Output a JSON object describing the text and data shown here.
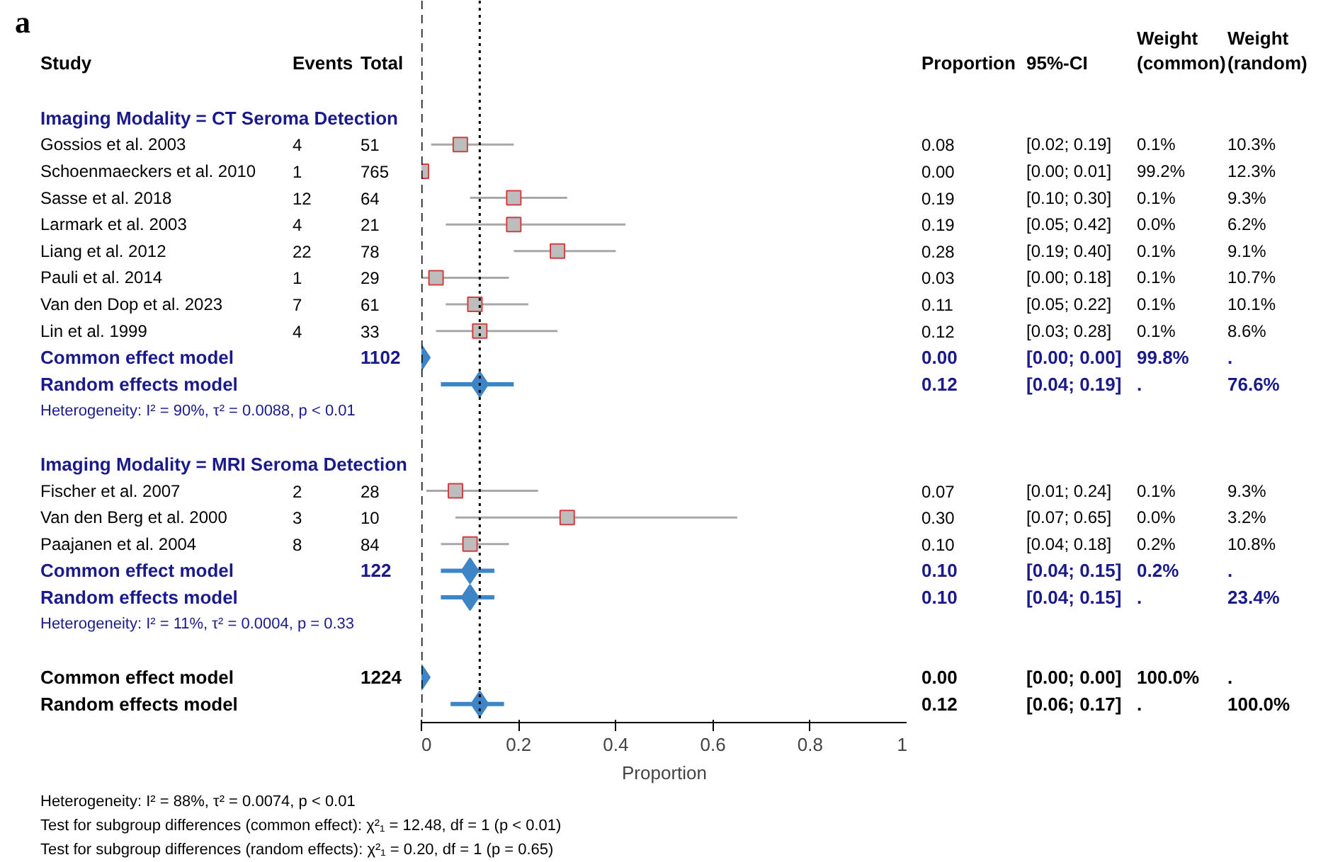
{
  "chart_data": {
    "type": "scatter",
    "orientation": "horizontal",
    "title": "a",
    "ylabel": "Study",
    "xlabel": "Proportion",
    "categories": [
      "Imaging Modality = CT Seroma Detection",
      "Gossios et al. 2003",
      "Schoenmaeckers et al. 2010",
      "Sasse et al. 2018",
      "Larmark et al. 2003",
      "Liang et al. 2012",
      "Pauli et al. 2014",
      "Van den Dop et al. 2023",
      "Lin et al. 1999",
      "Common effect model",
      "Random effects model",
      "Heterogeneity: I² = 90%, τ² = 0.0088, p < 0.01",
      null,
      "Imaging Modality = MRI Seroma Detection",
      "Fischer et al. 2007",
      "Van den Berg et al. 2000",
      "Paajanen et al. 2004",
      "Common effect model",
      "Random effects model",
      "Heterogeneity: I² = 11%, τ² = 0.0004, p = 0.33",
      null,
      "Common effect model",
      "Random effects model"
    ],
    "xlim": [
      0,
      1
    ],
    "xticks": [
      0,
      0.2,
      0.4,
      0.6,
      0.8,
      1
    ],
    "series": [
      {
        "type": "scatter",
        "marker": "square",
        "color": "#bdbdbd",
        "values": [
          null,
          0.08,
          0.0,
          0.19,
          0.19,
          0.28,
          0.03,
          0.11,
          0.12,
          null,
          null,
          null,
          null,
          null,
          0.07,
          0.3,
          0.1,
          null,
          null,
          null,
          null,
          null,
          null
        ],
        "errors": [
          null,
          [
            0.02,
            0.19
          ],
          [
            0.0,
            0.01
          ],
          [
            0.1,
            0.3
          ],
          [
            0.05,
            0.42
          ],
          [
            0.19,
            0.4
          ],
          [
            0.0,
            0.18
          ],
          [
            0.05,
            0.22
          ],
          [
            0.03,
            0.28
          ],
          null,
          null,
          null,
          null,
          null,
          [
            0.01,
            0.24
          ],
          [
            0.07,
            0.65
          ],
          [
            0.04,
            0.18
          ],
          null,
          null,
          null,
          null,
          null,
          null
        ]
      },
      {
        "type": "scatter",
        "marker": "diamond",
        "color": "#3d85c6",
        "values": [
          null,
          null,
          null,
          null,
          null,
          null,
          null,
          null,
          null,
          0.0,
          0.12,
          null,
          null,
          null,
          null,
          null,
          null,
          0.1,
          0.1,
          null,
          null,
          0.0,
          0.12
        ],
        "errors": [
          null,
          null,
          null,
          null,
          null,
          null,
          null,
          null,
          null,
          [
            0.0,
            0.0
          ],
          [
            0.04,
            0.19
          ],
          null,
          null,
          null,
          null,
          null,
          null,
          [
            0.04,
            0.15
          ],
          [
            0.04,
            0.15
          ],
          null,
          null,
          [
            0.0,
            0.0
          ],
          [
            0.06,
            0.17
          ]
        ]
      },
      {
        "type": "other",
        "name": "Events",
        "values": [
          null,
          null,
          null,
          null,
          null,
          null,
          null,
          null,
          null,
          null,
          null,
          null,
          null,
          null,
          null,
          null,
          null,
          null,
          null,
          null,
          null,
          null,
          null
        ],
        "value_labels": [
          null,
          "4",
          "1",
          "12",
          "4",
          "22",
          "1",
          "7",
          "4",
          null,
          null,
          null,
          null,
          null,
          "2",
          "3",
          "8",
          null,
          null,
          null,
          null,
          null,
          null
        ]
      },
      {
        "type": "other",
        "name": "Total",
        "values": [
          null,
          null,
          null,
          null,
          null,
          null,
          null,
          null,
          null,
          null,
          null,
          null,
          null,
          null,
          null,
          null,
          null,
          null,
          null,
          null,
          null,
          null,
          null
        ],
        "value_labels": [
          null,
          "51",
          "765",
          "64",
          "21",
          "78",
          "29",
          "61",
          "33",
          "1102",
          null,
          null,
          null,
          null,
          "28",
          "10",
          "84",
          "122",
          null,
          null,
          null,
          "1224",
          null
        ]
      },
      {
        "type": "other",
        "name": "Proportion",
        "values": [
          null,
          null,
          null,
          null,
          null,
          null,
          null,
          null,
          null,
          null,
          null,
          null,
          null,
          null,
          null,
          null,
          null,
          null,
          null,
          null,
          null,
          null,
          null
        ],
        "value_labels": [
          null,
          "0.08",
          "0.00",
          "0.19",
          "0.19",
          "0.28",
          "0.03",
          "0.11",
          "0.12",
          "0.00",
          "0.12",
          null,
          null,
          null,
          "0.07",
          "0.30",
          "0.10",
          "0.10",
          "0.10",
          null,
          null,
          "0.00",
          "0.12"
        ]
      },
      {
        "type": "other",
        "name": "95%-CI",
        "values": [
          null,
          null,
          null,
          null,
          null,
          null,
          null,
          null,
          null,
          null,
          null,
          null,
          null,
          null,
          null,
          null,
          null,
          null,
          null,
          null,
          null,
          null,
          null
        ],
        "value_labels": [
          null,
          "[0.02; 0.19]",
          "[0.00; 0.01]",
          "[0.10; 0.30]",
          "[0.05; 0.42]",
          "[0.19; 0.40]",
          "[0.00; 0.18]",
          "[0.05; 0.22]",
          "[0.03; 0.28]",
          "[0.00; 0.00]",
          "[0.04; 0.19]",
          null,
          null,
          null,
          "[0.01; 0.24]",
          "[0.07; 0.65]",
          "[0.04; 0.18]",
          "[0.04; 0.15]",
          "[0.04; 0.15]",
          null,
          null,
          "[0.00; 0.00]",
          "[0.06; 0.17]"
        ]
      },
      {
        "type": "other",
        "name": "Weight\n(common)",
        "values": [
          null,
          null,
          null,
          null,
          null,
          null,
          null,
          null,
          null,
          null,
          null,
          null,
          null,
          null,
          null,
          null,
          null,
          null,
          null,
          null,
          null,
          null,
          null
        ],
        "value_labels": [
          null,
          "0.1%",
          "99.2%",
          "0.1%",
          "0.0%",
          "0.1%",
          "0.1%",
          "0.1%",
          "0.1%",
          "99.8%",
          ".",
          null,
          null,
          null,
          "0.1%",
          "0.0%",
          "0.2%",
          "0.2%",
          ".",
          null,
          null,
          "100.0%",
          "."
        ]
      },
      {
        "type": "other",
        "name": "Weight\n(random)",
        "values": [
          null,
          null,
          null,
          null,
          null,
          null,
          null,
          null,
          null,
          null,
          null,
          null,
          null,
          null,
          null,
          null,
          null,
          null,
          null,
          null,
          null,
          null,
          null
        ],
        "value_labels": [
          null,
          "10.3%",
          "12.3%",
          "9.3%",
          "6.2%",
          "9.1%",
          "10.7%",
          "10.1%",
          "8.6%",
          ".",
          "76.6%",
          null,
          null,
          null,
          "9.3%",
          "3.2%",
          "10.8%",
          ".",
          "23.4%",
          null,
          null,
          ".",
          "100.0%"
        ]
      }
    ],
    "ref_lines": [
      {
        "axis": "x",
        "value": 0,
        "line_style": "dashed",
        "color": "#000000"
      },
      {
        "axis": "x",
        "value": 0.12,
        "line_style": "dotted",
        "color": "#000000"
      }
    ],
    "annotations": [
      "Heterogeneity: I² = 88%, τ² = 0.0074, p < 0.01",
      "Test for subgroup differences (common effect): χ²₁ = 12.48, df = 1 (p < 0.01)",
      "Test for subgroup differences (random effects): χ²₁ = 0.20, df = 1 (p = 0.65)"
    ]
  }
}
